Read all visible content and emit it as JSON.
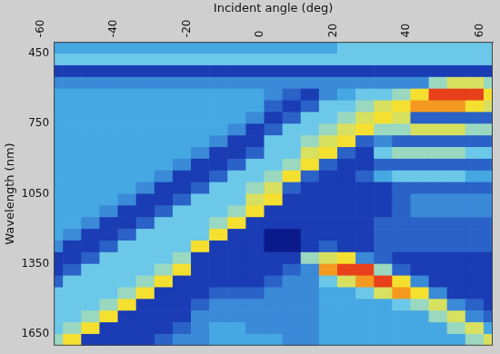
{
  "chart_data": {
    "type": "heatmap",
    "x_label": "Incident angle (deg)",
    "y_label": "Wavelength (nm)",
    "xlim": [
      -60,
      60
    ],
    "ylim": [
      400,
      1700
    ],
    "xticks": [
      -60,
      -40,
      -20,
      0,
      20,
      40,
      60
    ],
    "yticks": [
      450,
      750,
      1050,
      1350,
      1650
    ],
    "grid": false,
    "x": [
      -60,
      -55,
      -50,
      -45,
      -40,
      -35,
      -30,
      -25,
      -20,
      -15,
      -10,
      -5,
      0,
      5,
      10,
      15,
      20,
      25,
      30,
      35,
      40,
      45,
      50,
      55,
      60
    ],
    "y": [
      425,
      475,
      525,
      575,
      625,
      675,
      725,
      775,
      825,
      875,
      925,
      975,
      1025,
      1075,
      1125,
      1175,
      1225,
      1275,
      1325,
      1375,
      1425,
      1475,
      1525,
      1575,
      1625,
      1675
    ],
    "zlim": [
      0,
      10
    ],
    "cells": [
      [
        4,
        4,
        4,
        4,
        4,
        4,
        4,
        4,
        4,
        4,
        4,
        4,
        4,
        4,
        4,
        4,
        5,
        5,
        5,
        5,
        5,
        5,
        5,
        5,
        5
      ],
      [
        5,
        5,
        5,
        5,
        5,
        5,
        5,
        5,
        5,
        5,
        5,
        5,
        5,
        5,
        5,
        5,
        5,
        5,
        5,
        5,
        5,
        5,
        5,
        5,
        5
      ],
      [
        1,
        1,
        1,
        1,
        1,
        1,
        1,
        1,
        1,
        1,
        1,
        1,
        1,
        1,
        1,
        1,
        1,
        1,
        1,
        1,
        1,
        1,
        1,
        1,
        1
      ],
      [
        3,
        3,
        3,
        3,
        3,
        3,
        3,
        3,
        3,
        3,
        3,
        3,
        3,
        3,
        3,
        3,
        3,
        3,
        3,
        3,
        3,
        6,
        7,
        7,
        6
      ],
      [
        4,
        4,
        4,
        4,
        4,
        4,
        4,
        4,
        4,
        4,
        4,
        4,
        3,
        2,
        1,
        3,
        4,
        5,
        5,
        6,
        8,
        10,
        10,
        10,
        8
      ],
      [
        4,
        4,
        4,
        4,
        4,
        4,
        4,
        4,
        4,
        4,
        4,
        4,
        2,
        1,
        2,
        5,
        5,
        6,
        7,
        8,
        9,
        9,
        9,
        8,
        7
      ],
      [
        4,
        4,
        4,
        4,
        4,
        4,
        4,
        4,
        4,
        4,
        4,
        3,
        1,
        2,
        5,
        5,
        6,
        7,
        8,
        7,
        2,
        2,
        2,
        2,
        2
      ],
      [
        4,
        4,
        4,
        4,
        4,
        4,
        4,
        4,
        4,
        4,
        3,
        1,
        2,
        5,
        5,
        6,
        7,
        8,
        6,
        6,
        7,
        7,
        7,
        6,
        6
      ],
      [
        4,
        4,
        4,
        4,
        4,
        4,
        4,
        4,
        4,
        3,
        1,
        1,
        5,
        5,
        6,
        7,
        8,
        2,
        3,
        2,
        2,
        2,
        2,
        2,
        2
      ],
      [
        4,
        4,
        4,
        4,
        4,
        4,
        4,
        4,
        3,
        1,
        1,
        2,
        5,
        5,
        7,
        8,
        2,
        1,
        5,
        6,
        6,
        6,
        6,
        5,
        5
      ],
      [
        4,
        4,
        4,
        4,
        4,
        4,
        4,
        3,
        1,
        1,
        2,
        5,
        5,
        6,
        8,
        2,
        1,
        1,
        2,
        2,
        2,
        2,
        2,
        2,
        2
      ],
      [
        4,
        4,
        4,
        4,
        4,
        4,
        3,
        1,
        1,
        2,
        5,
        5,
        6,
        8,
        2,
        1,
        1,
        2,
        4,
        5,
        5,
        5,
        5,
        4,
        4
      ],
      [
        4,
        4,
        4,
        4,
        4,
        3,
        1,
        1,
        2,
        5,
        5,
        6,
        7,
        2,
        1,
        1,
        1,
        1,
        1,
        2,
        2,
        2,
        2,
        2,
        2
      ],
      [
        4,
        4,
        4,
        4,
        3,
        1,
        1,
        2,
        5,
        5,
        5,
        7,
        8,
        1,
        1,
        1,
        1,
        1,
        1,
        2,
        3,
        3,
        3,
        3,
        3
      ],
      [
        4,
        4,
        4,
        3,
        1,
        1,
        2,
        5,
        5,
        5,
        6,
        8,
        1,
        1,
        1,
        1,
        1,
        1,
        1,
        2,
        3,
        3,
        3,
        3,
        3
      ],
      [
        4,
        4,
        3,
        1,
        1,
        2,
        5,
        5,
        5,
        6,
        8,
        1,
        1,
        1,
        1,
        1,
        1,
        1,
        2,
        2,
        2,
        2,
        2,
        2,
        2
      ],
      [
        4,
        3,
        1,
        1,
        2,
        5,
        5,
        5,
        5,
        8,
        1,
        1,
        0,
        0,
        1,
        1,
        1,
        1,
        2,
        2,
        2,
        2,
        2,
        2,
        2
      ],
      [
        3,
        1,
        1,
        2,
        5,
        5,
        5,
        5,
        8,
        1,
        1,
        1,
        0,
        0,
        1,
        2,
        1,
        1,
        2,
        2,
        2,
        2,
        2,
        2,
        2
      ],
      [
        1,
        1,
        2,
        5,
        5,
        5,
        5,
        6,
        1,
        1,
        1,
        1,
        1,
        1,
        6,
        7,
        8,
        3,
        2,
        1,
        1,
        1,
        1,
        1,
        1
      ],
      [
        1,
        2,
        5,
        5,
        5,
        5,
        6,
        8,
        1,
        1,
        1,
        1,
        1,
        2,
        3,
        9,
        10,
        10,
        6,
        2,
        1,
        1,
        1,
        1,
        1
      ],
      [
        2,
        5,
        5,
        5,
        5,
        6,
        8,
        1,
        1,
        1,
        1,
        1,
        2,
        3,
        3,
        5,
        7,
        9,
        10,
        8,
        3,
        1,
        1,
        1,
        1
      ],
      [
        5,
        5,
        5,
        5,
        6,
        8,
        1,
        1,
        1,
        2,
        2,
        2,
        3,
        3,
        3,
        4,
        4,
        5,
        7,
        9,
        8,
        3,
        1,
        1,
        1
      ],
      [
        5,
        5,
        5,
        6,
        8,
        1,
        1,
        1,
        2,
        3,
        3,
        3,
        3,
        3,
        3,
        4,
        4,
        4,
        4,
        5,
        6,
        7,
        3,
        2,
        1
      ],
      [
        5,
        5,
        6,
        8,
        1,
        1,
        1,
        1,
        3,
        3,
        3,
        3,
        3,
        3,
        3,
        4,
        4,
        4,
        4,
        4,
        4,
        6,
        7,
        3,
        2
      ],
      [
        5,
        6,
        8,
        1,
        1,
        1,
        1,
        2,
        3,
        4,
        4,
        3,
        3,
        3,
        3,
        4,
        4,
        4,
        4,
        4,
        4,
        4,
        6,
        7,
        4
      ],
      [
        6,
        8,
        1,
        1,
        1,
        1,
        2,
        3,
        3,
        4,
        4,
        4,
        4,
        3,
        3,
        4,
        4,
        4,
        4,
        4,
        4,
        4,
        4,
        6,
        7
      ]
    ]
  }
}
